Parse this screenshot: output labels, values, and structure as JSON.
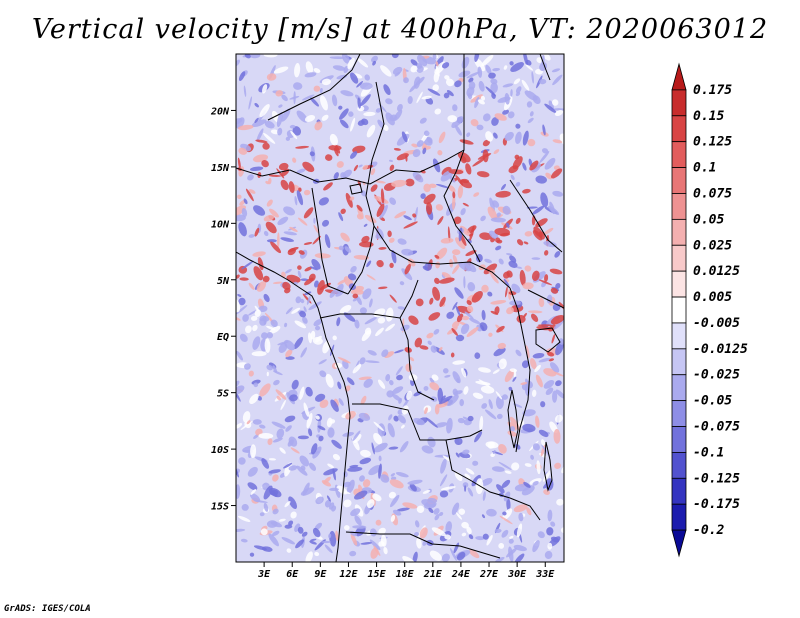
{
  "title": "Vertical velocity [m/s] at 400hPa, VT: 2020063012",
  "credit": "GrADS: IGES/COLA",
  "y_axis": {
    "labels": [
      "20N",
      "15N",
      "10N",
      "5N",
      "EQ",
      "5S",
      "10S",
      "15S"
    ],
    "values": [
      20,
      15,
      10,
      5,
      0,
      -5,
      -10,
      -15
    ],
    "range": [
      -20,
      25
    ]
  },
  "x_axis": {
    "labels": [
      "3E",
      "6E",
      "9E",
      "12E",
      "15E",
      "18E",
      "21E",
      "24E",
      "27E",
      "30E",
      "33E"
    ],
    "values": [
      3,
      6,
      9,
      12,
      15,
      18,
      21,
      24,
      27,
      30,
      33
    ],
    "range": [
      0,
      35
    ]
  },
  "colorbar": {
    "levels": [
      "0.175",
      "0.15",
      "0.125",
      "0.1",
      "0.075",
      "0.05",
      "0.025",
      "0.0125",
      "0.005",
      "-0.005",
      "-0.0125",
      "-0.025",
      "-0.05",
      "-0.075",
      "-0.1",
      "-0.125",
      "-0.175",
      "-0.2"
    ],
    "colors": [
      "#b81a1a",
      "#c82c2c",
      "#d84444",
      "#e25d5d",
      "#e87676",
      "#ee9292",
      "#f4b0b0",
      "#f8caca",
      "#fce4e4",
      "#ffffff",
      "#e0e0fa",
      "#c6c6f4",
      "#aaaaee",
      "#8e8ee6",
      "#7272dc",
      "#5252cf",
      "#3434c0",
      "#1c1cae",
      "#0a0a96"
    ]
  },
  "field_colors": {
    "neutral": "#d8d8f6",
    "strong_up": "#d84444",
    "weak_up": "#f4b0b0",
    "weak_down": "#aaaaee",
    "strong_down": "#7272dc"
  }
}
